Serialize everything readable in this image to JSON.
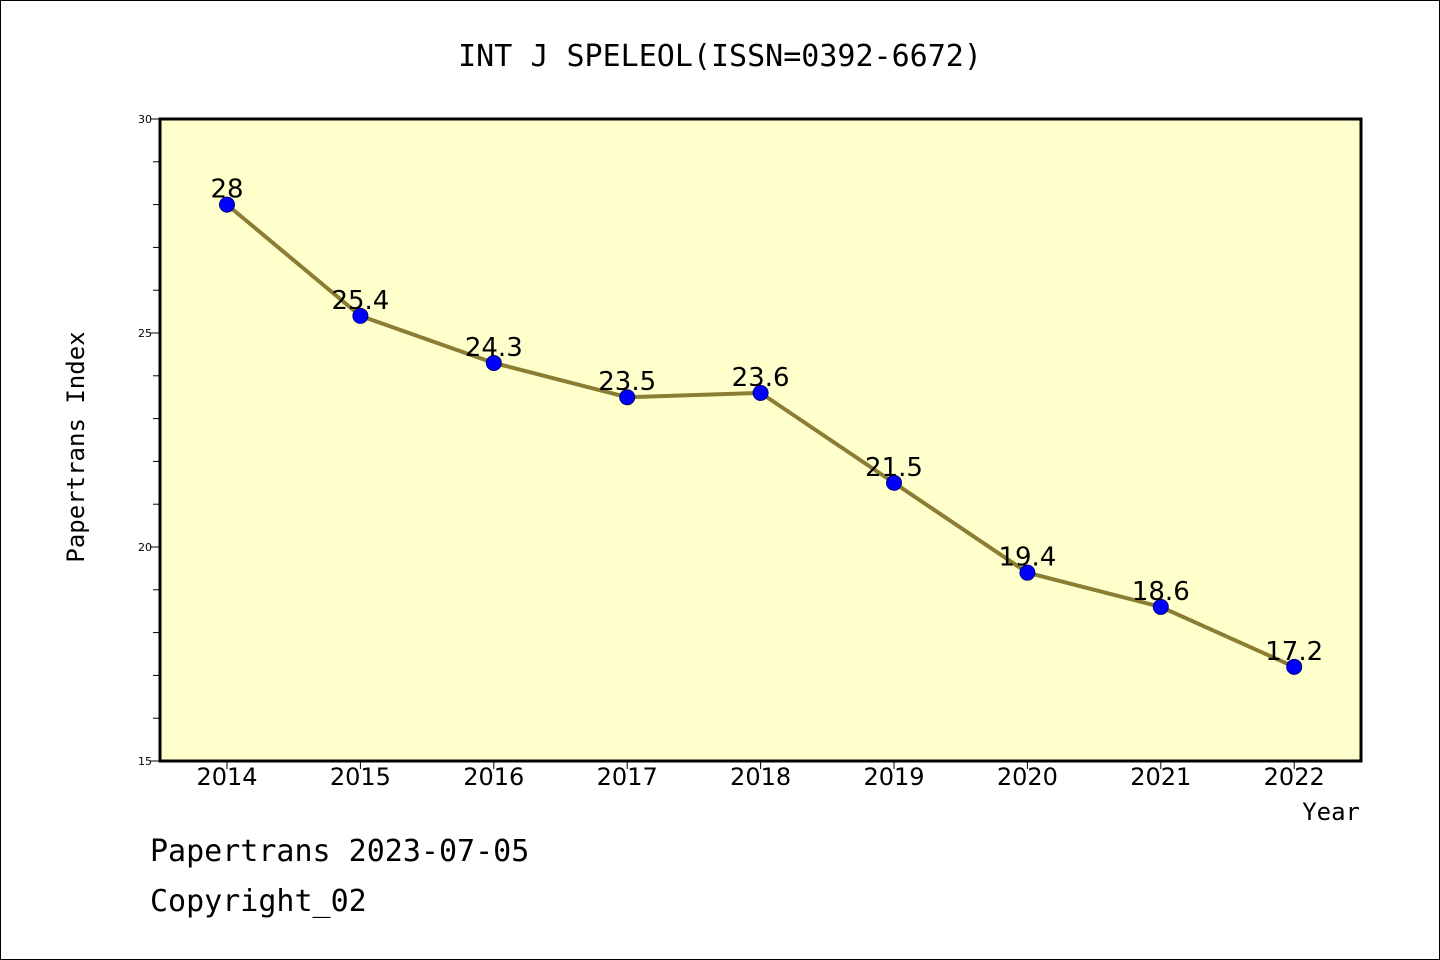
{
  "chart_data": {
    "type": "line",
    "title": "INT J SPELEOL(ISSN=0392-6672)",
    "xlabel": "Year",
    "ylabel": "Papertrans Index",
    "categories": [
      "2014",
      "2015",
      "2016",
      "2017",
      "2018",
      "2019",
      "2020",
      "2021",
      "2022"
    ],
    "values": [
      28,
      25.4,
      24.3,
      23.5,
      23.6,
      21.5,
      19.4,
      18.6,
      17.2
    ],
    "data_labels": [
      "28",
      "25.4",
      "24.3",
      "23.5",
      "23.6",
      "21.5",
      "19.4",
      "18.6",
      "17.2"
    ],
    "yticks": [
      "15",
      "20",
      "25",
      "30"
    ],
    "ylim": [
      15,
      30
    ],
    "grid": false,
    "colors": {
      "plot_background": "#ffffcc",
      "line": "#8b7d33",
      "marker": "#0000ff"
    }
  },
  "footer": {
    "line1": "Papertrans 2023-07-05",
    "line2": "Copyright_02"
  }
}
